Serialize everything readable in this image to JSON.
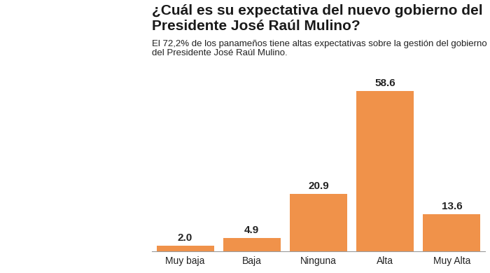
{
  "chart_data": {
    "type": "bar",
    "title": "¿Cuál es su expectativa del nuevo gobierno del Presidente José Raúl Mulino?",
    "subtitle": "El 72,2% de los panameños tiene altas expectativas sobre la gestión del gobierno del Presidente José Raúl Mulino.",
    "categories": [
      "Muy baja",
      "Baja",
      "Ninguna",
      "Alta",
      "Muy Alta"
    ],
    "values": [
      2.0,
      4.9,
      20.9,
      58.6,
      13.6
    ],
    "color": "#f0924a",
    "ylim": [
      0,
      62
    ],
    "yticks": [],
    "data_labels": true,
    "tick_labels": "x",
    "grid": false
  }
}
